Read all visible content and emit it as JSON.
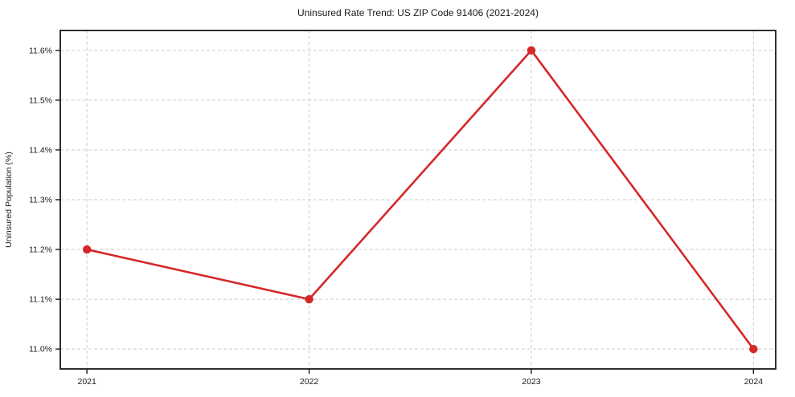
{
  "chart_data": {
    "type": "line",
    "title": "Uninsured Rate Trend: US ZIP Code 91406 (2021-2024)",
    "ylabel": "Uninsured Population (%)",
    "xlabel": "",
    "x": [
      2021,
      2022,
      2023,
      2024
    ],
    "xtick_labels": [
      "2021",
      "2022",
      "2023",
      "2024"
    ],
    "series": [
      {
        "values": [
          11.2,
          11.1,
          11.6,
          11.0
        ],
        "color": "#d62728"
      }
    ],
    "yticks": [
      11.0,
      11.1,
      11.2,
      11.3,
      11.4,
      11.5,
      11.6
    ],
    "ytick_labels": [
      "11.0%",
      "11.1%",
      "11.2%",
      "11.3%",
      "11.4%",
      "11.5%",
      "11.6%"
    ],
    "xlim": [
      2020.88,
      2024.1
    ],
    "ylim": [
      10.96,
      11.64
    ],
    "grid": true,
    "grid_style": "dashed",
    "grid_color": "#cccccc",
    "axis_color": "#1a1a1a",
    "background": "#ffffff"
  }
}
